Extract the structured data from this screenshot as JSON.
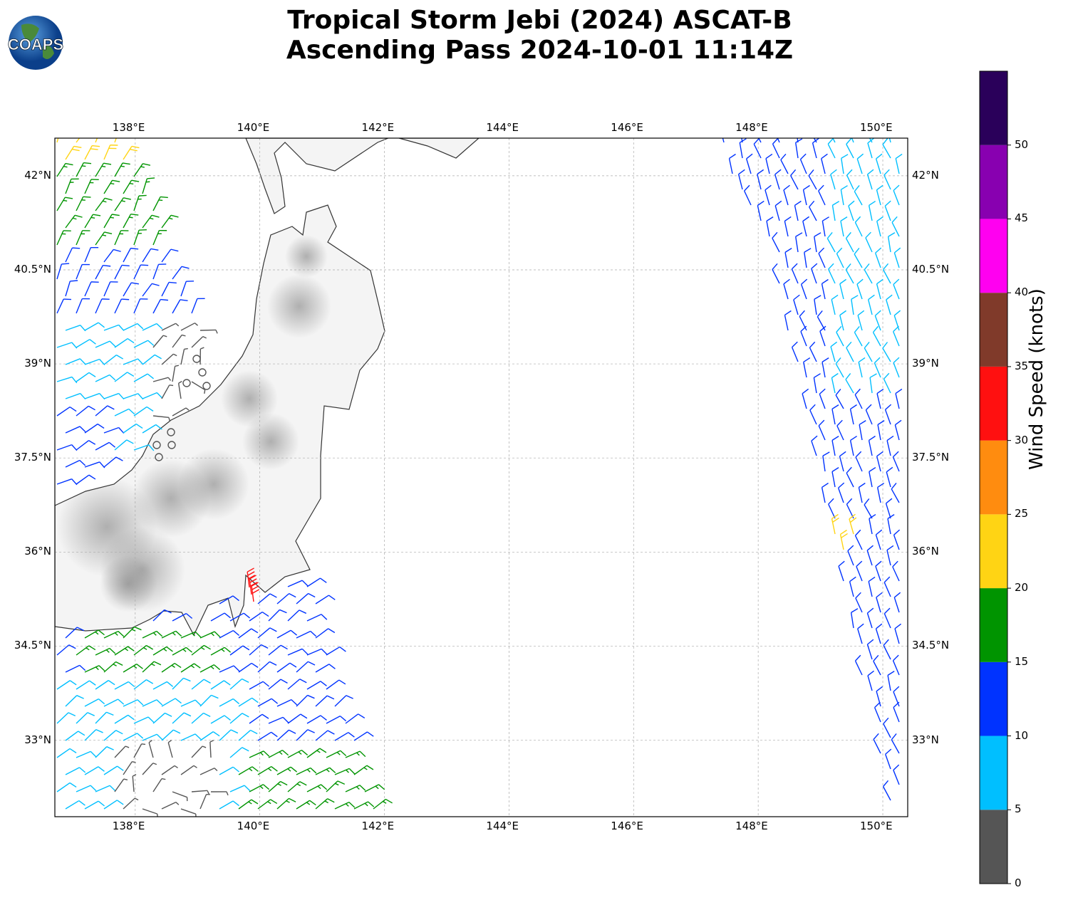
{
  "title": {
    "line1": "Tropical Storm Jebi (2024) ASCAT-B",
    "line2": "Ascending Pass 2024-10-01 11:14Z"
  },
  "logo": {
    "text": "COAPS"
  },
  "map": {
    "lon_range": [
      136.71,
      150.4
    ],
    "lat_range": [
      31.78,
      42.6
    ],
    "lon_ticks": [
      {
        "v": 138,
        "label": "138°E"
      },
      {
        "v": 140,
        "label": "140°E"
      },
      {
        "v": 142,
        "label": "142°E"
      },
      {
        "v": 144,
        "label": "144°E"
      },
      {
        "v": 146,
        "label": "146°E"
      },
      {
        "v": 148,
        "label": "148°E"
      },
      {
        "v": 150,
        "label": "150°E"
      }
    ],
    "lat_ticks": [
      {
        "v": 42,
        "label": "42°N"
      },
      {
        "v": 40.5,
        "label": "40.5°N"
      },
      {
        "v": 39,
        "label": "39°N"
      },
      {
        "v": 37.5,
        "label": "37.5°N"
      },
      {
        "v": 36,
        "label": "36°N"
      },
      {
        "v": 34.5,
        "label": "34.5°N"
      },
      {
        "v": 33,
        "label": "33°N"
      }
    ]
  },
  "colorbar": {
    "label": "Wind Speed (knots)",
    "ticks": [
      "0",
      "5",
      "10",
      "15",
      "20",
      "25",
      "30",
      "35",
      "40",
      "45",
      "50"
    ],
    "colors": [
      "#555555",
      "#00bfff",
      "#0033ff",
      "#009400",
      "#ffd414",
      "#ff8c0f",
      "#ff1010",
      "#803a2a",
      "#ff00f0",
      "#8800b0",
      "#2a005a"
    ]
  }
}
